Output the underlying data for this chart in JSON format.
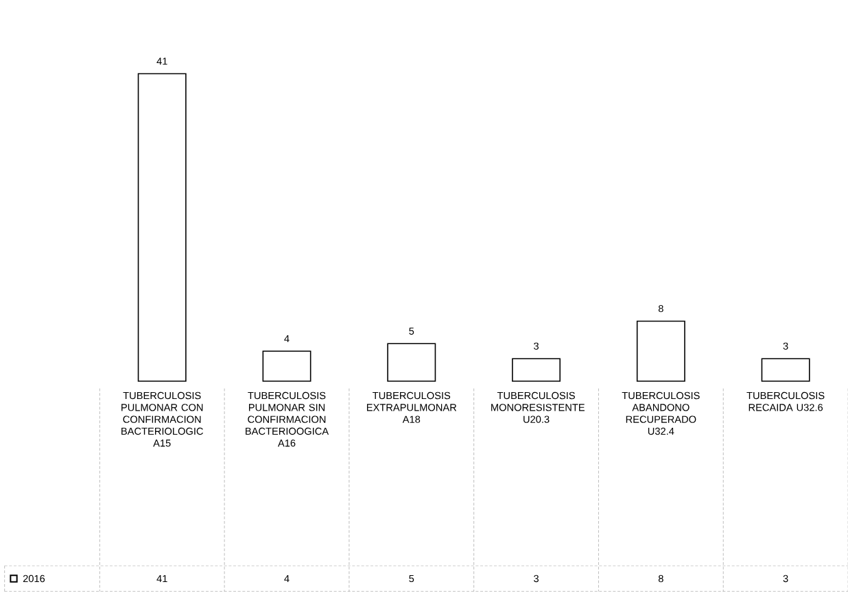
{
  "chart_data": {
    "type": "bar",
    "categories": [
      "TUBERCULOSIS PULMONAR CON CONFIRMACION BACTERIOLOGIC A15",
      "TUBERCULOSIS PULMONAR SIN CONFIRMACION BACTERIOOGICA A16",
      "TUBERCULOSIS EXTRAPULMONAR A18",
      "TUBERCULOSIS MONORESISTENTE U20.3",
      "TUBERCULOSIS ABANDONO RECUPERADO U32.4",
      "TUBERCULOSIS RECAIDA U32.6"
    ],
    "series": [
      {
        "name": "2016",
        "color": "#ffffff",
        "values": [
          41,
          4,
          5,
          3,
          8,
          3
        ]
      }
    ],
    "annotations": [
      "41",
      "4",
      "5",
      "3",
      "8",
      "3"
    ],
    "data_labels": true,
    "legend": "bottom left"
  }
}
